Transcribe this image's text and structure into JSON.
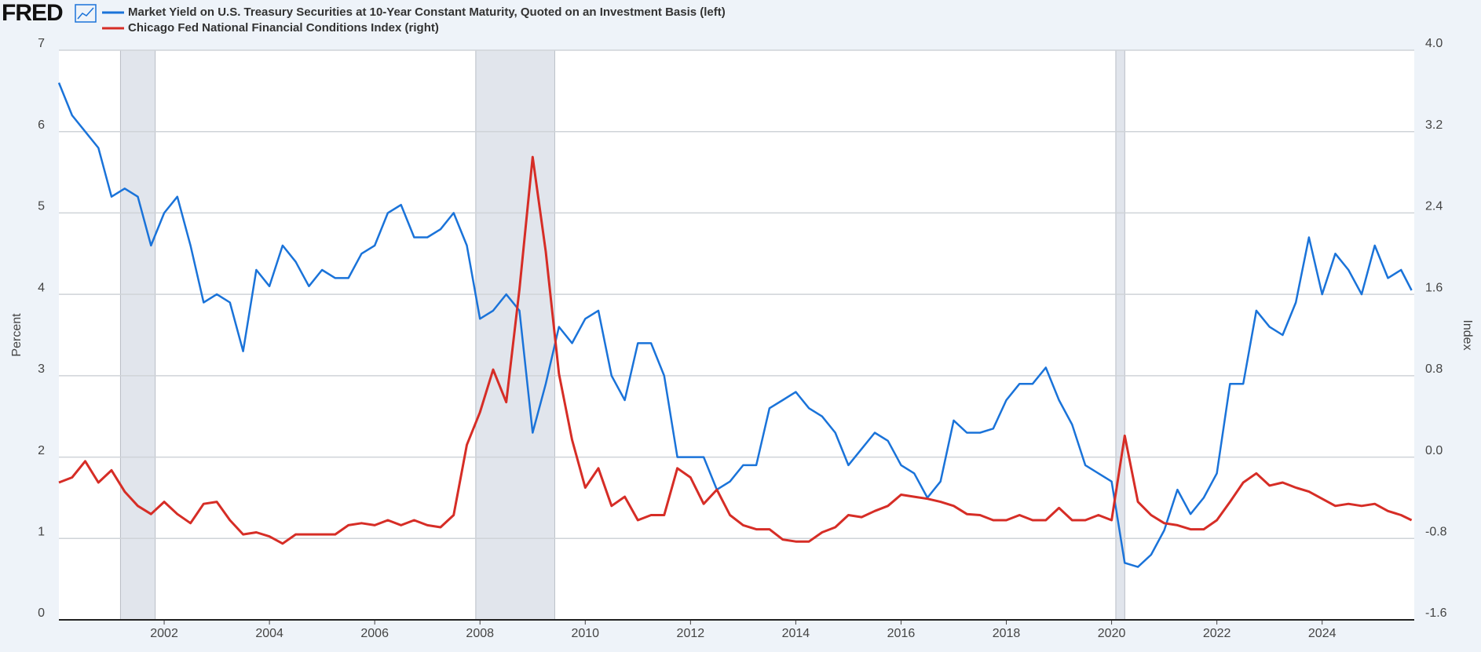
{
  "logo": "FRED",
  "chart_data": {
    "type": "line",
    "y_label": "Percent",
    "y2_label": "Index",
    "x": [
      2000.0,
      2000.25,
      2000.5,
      2000.75,
      2001.0,
      2001.25,
      2001.5,
      2001.75,
      2002.0,
      2002.25,
      2002.5,
      2002.75,
      2003.0,
      2003.25,
      2003.5,
      2003.75,
      2004.0,
      2004.25,
      2004.5,
      2004.75,
      2005.0,
      2005.25,
      2005.5,
      2005.75,
      2006.0,
      2006.25,
      2006.5,
      2006.75,
      2007.0,
      2007.25,
      2007.5,
      2007.75,
      2008.0,
      2008.25,
      2008.5,
      2008.75,
      2009.0,
      2009.25,
      2009.5,
      2009.75,
      2010.0,
      2010.25,
      2010.5,
      2010.75,
      2011.0,
      2011.25,
      2011.5,
      2011.75,
      2012.0,
      2012.25,
      2012.5,
      2012.75,
      2013.0,
      2013.25,
      2013.5,
      2013.75,
      2014.0,
      2014.25,
      2014.5,
      2014.75,
      2015.0,
      2015.25,
      2015.5,
      2015.75,
      2016.0,
      2016.25,
      2016.5,
      2016.75,
      2017.0,
      2017.25,
      2017.5,
      2017.75,
      2018.0,
      2018.25,
      2018.5,
      2018.75,
      2019.0,
      2019.25,
      2019.5,
      2019.75,
      2020.0,
      2020.25,
      2020.5,
      2020.75,
      2021.0,
      2021.25,
      2021.5,
      2021.75,
      2022.0,
      2022.25,
      2022.5,
      2022.75,
      2023.0,
      2023.25,
      2023.5,
      2023.75,
      2024.0,
      2024.25,
      2024.5,
      2024.75,
      2025.0,
      2025.25,
      2025.5,
      2025.7
    ],
    "series": [
      {
        "name": "Market Yield on U.S. Treasury Securities at 10-Year Constant Maturity, Quoted on an Investment Basis (left)",
        "color": "#1a73d9",
        "axis": "y",
        "values": [
          6.6,
          6.2,
          6.0,
          5.8,
          5.2,
          5.3,
          5.2,
          4.6,
          5.0,
          5.2,
          4.6,
          3.9,
          4.0,
          3.9,
          3.3,
          4.3,
          4.1,
          4.6,
          4.4,
          4.1,
          4.3,
          4.2,
          4.2,
          4.5,
          4.6,
          5.0,
          5.1,
          4.7,
          4.7,
          4.8,
          5.0,
          4.6,
          3.7,
          3.8,
          4.0,
          3.8,
          2.3,
          2.9,
          3.6,
          3.4,
          3.7,
          3.8,
          3.0,
          2.7,
          3.4,
          3.4,
          3.0,
          2.0,
          2.0,
          2.0,
          1.6,
          1.7,
          1.9,
          1.9,
          2.6,
          2.7,
          2.8,
          2.6,
          2.5,
          2.3,
          1.9,
          2.1,
          2.3,
          2.2,
          1.9,
          1.8,
          1.5,
          1.7,
          2.45,
          2.3,
          2.3,
          2.35,
          2.7,
          2.9,
          2.9,
          3.1,
          2.7,
          2.4,
          1.9,
          1.8,
          1.7,
          0.7,
          0.65,
          0.8,
          1.1,
          1.6,
          1.3,
          1.5,
          1.8,
          2.9,
          2.9,
          3.8,
          3.6,
          3.5,
          3.9,
          4.7,
          4.0,
          4.5,
          4.3,
          4.0,
          4.6,
          4.2,
          4.3,
          4.05
        ]
      },
      {
        "name": "Chicago Fed National Financial Conditions Index (right)",
        "color": "#d62d26",
        "axis": "y2",
        "values": [
          -0.25,
          -0.2,
          -0.04,
          -0.25,
          -0.13,
          -0.34,
          -0.48,
          -0.56,
          -0.44,
          -0.56,
          -0.65,
          -0.46,
          -0.44,
          -0.62,
          -0.76,
          -0.74,
          -0.78,
          -0.85,
          -0.76,
          -0.76,
          -0.76,
          -0.76,
          -0.67,
          -0.65,
          -0.67,
          -0.62,
          -0.67,
          -0.62,
          -0.67,
          -0.69,
          -0.57,
          0.12,
          0.44,
          0.86,
          0.54,
          1.65,
          2.95,
          2.02,
          0.82,
          0.17,
          -0.3,
          -0.11,
          -0.48,
          -0.39,
          -0.62,
          -0.57,
          -0.57,
          -0.11,
          -0.2,
          -0.46,
          -0.32,
          -0.57,
          -0.67,
          -0.71,
          -0.71,
          -0.81,
          -0.83,
          -0.83,
          -0.74,
          -0.69,
          -0.57,
          -0.59,
          -0.53,
          -0.48,
          -0.37,
          -0.39,
          -0.41,
          -0.44,
          -0.48,
          -0.56,
          -0.57,
          -0.62,
          -0.62,
          -0.57,
          -0.62,
          -0.62,
          -0.5,
          -0.62,
          -0.62,
          -0.57,
          -0.62,
          0.21,
          -0.44,
          -0.57,
          -0.65,
          -0.67,
          -0.71,
          -0.71,
          -0.62,
          -0.44,
          -0.25,
          -0.16,
          -0.28,
          -0.25,
          -0.3,
          -0.34,
          -0.41,
          -0.48,
          -0.46,
          -0.48,
          -0.46,
          -0.53,
          -0.57,
          -0.62
        ]
      }
    ],
    "recessions": [
      [
        2001.17,
        2001.83
      ],
      [
        2007.92,
        2009.42
      ],
      [
        2020.08,
        2020.25
      ]
    ],
    "xlim": [
      2000.0,
      2025.75
    ],
    "xticks": [
      2002,
      2004,
      2006,
      2008,
      2010,
      2012,
      2014,
      2016,
      2018,
      2020,
      2022,
      2024
    ],
    "ylim": [
      0,
      7
    ],
    "yticks": [
      0,
      1,
      2,
      3,
      4,
      5,
      6,
      7
    ],
    "y2lim": [
      -1.6,
      4.0
    ],
    "y2ticks": [
      -1.6,
      -0.8,
      {
        "value": 0,
        "label": "0.0"
      },
      0.8,
      1.6,
      2.4,
      3.2,
      {
        "value": 4,
        "label": "4.0"
      }
    ],
    "grid": true
  }
}
